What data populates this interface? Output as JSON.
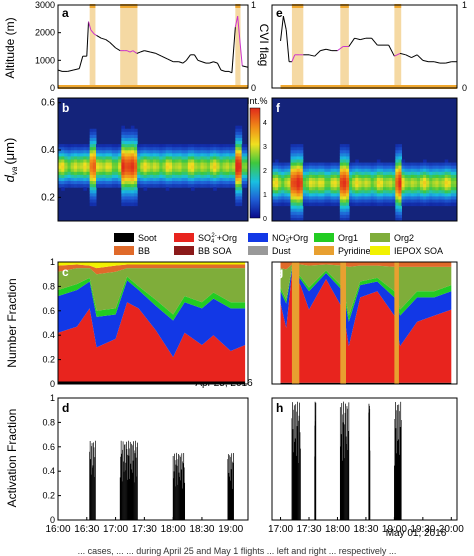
{
  "colors": {
    "cloud_shade": "#f5d9a3",
    "altitude_line": "#000000",
    "altitude_cloud_line": "#cc33cc",
    "cvi_flag": "#f0a830",
    "heat_background": "#14237a",
    "axis": "#000000"
  },
  "legend_items": [
    {
      "label": "Soot",
      "color": "#000000"
    },
    {
      "label": "SO42-+Org",
      "color": "#e8241e"
    },
    {
      "label": "NO3-+Org",
      "color": "#1238e6"
    },
    {
      "label": "Org1",
      "color": "#22cc22"
    },
    {
      "label": "Org2",
      "color": "#7fad3a"
    },
    {
      "label": "BB",
      "color": "#e06a2a"
    },
    {
      "label": "BB SOA",
      "color": "#8b1a1a"
    },
    {
      "label": "Dust",
      "color": "#999999"
    },
    {
      "label": "Pyridine",
      "color": "#e8a030"
    },
    {
      "label": "IEPOX SOA",
      "color": "#f2f200"
    }
  ],
  "legend_display": {
    "soot": "Soot",
    "so4_base": "SO",
    "so4_sub": "4",
    "so4_sup": "2-",
    "so4_rest": "+Org",
    "no3_base": "NO",
    "no3_sub": "3",
    "no3_sup": "-",
    "no3_rest": "+Org",
    "org1": "Org1",
    "org2": "Org2",
    "bb": "BB",
    "bb_soa": "BB SOA",
    "dust": "Dust",
    "pyridine": "Pyridine",
    "iepox": "IEPOX SOA"
  },
  "panel_letters": [
    "a",
    "b",
    "c",
    "d",
    "e",
    "f",
    "g",
    "h"
  ],
  "colorbar": {
    "title": "Int.%",
    "ticks": [
      "0",
      "1",
      "2",
      "3",
      "4"
    ],
    "stops": [
      "#0a0a8a",
      "#1f5fd6",
      "#19c0e0",
      "#3ec83e",
      "#f0e020",
      "#f08a18",
      "#e02a1a"
    ]
  },
  "axes": {
    "altitude_ylabel": "Altitude (m)",
    "cvi_ylabel": "CVI flag",
    "dva_ylabel_main": "d",
    "dva_ylabel_sub": "va",
    "dva_ylabel_unit": "(μm)",
    "number_fraction_ylabel": "Number Fraction",
    "activation_fraction_ylabel": "Activation Fraction",
    "altitude_ticks": [
      "0",
      "1000",
      "2000",
      "3000"
    ],
    "cvi_ticks": [
      "0",
      "1"
    ],
    "dva_ticks": [
      "0.2",
      "0.4",
      "0.6"
    ],
    "fraction_ticks": [
      "0",
      "0.2",
      "0.4",
      "0.6",
      "0.8",
      "1"
    ],
    "left_time_ticks": [
      "16:00",
      "16:30",
      "17:00",
      "17:30",
      "18:00",
      "18:30",
      "19:00"
    ],
    "right_time_ticks": [
      "17:00",
      "17:30",
      "18:00",
      "18:30",
      "19:00",
      "19:30",
      "20:00"
    ],
    "left_date": "Apr 25, 2016",
    "right_date": "May 01, 2016"
  },
  "caption": "... cases, ... ... during April 25 and May 1 flights ... left and right ... respectively ...",
  "chart_data": [
    {
      "panel": "a",
      "type": "line",
      "x_range_hours": [
        16.0,
        19.3
      ],
      "ylabel": "Altitude (m)",
      "y2label": "CVI flag",
      "ylim": [
        0,
        3000
      ],
      "y2lim": [
        0,
        1
      ],
      "altitude_x_hours": [
        16.0,
        16.07,
        16.17,
        16.27,
        16.37,
        16.43,
        16.5,
        16.53,
        16.57,
        16.63,
        16.67,
        16.75,
        16.83,
        16.9,
        16.95,
        17.0,
        17.08,
        17.15,
        17.2,
        17.25,
        17.3,
        17.37,
        17.43,
        17.5,
        17.6,
        17.7,
        17.8,
        17.9,
        18.0,
        18.1,
        18.17,
        18.23,
        18.3,
        18.37,
        18.43,
        18.5,
        18.57,
        18.63,
        18.7,
        18.77,
        18.83,
        18.9,
        18.97,
        19.02,
        19.08,
        19.12,
        19.2,
        19.3
      ],
      "altitude_y_m": [
        650,
        600,
        600,
        650,
        700,
        1150,
        1150,
        2400,
        2100,
        1950,
        1900,
        1800,
        1750,
        1650,
        1550,
        1450,
        1350,
        1350,
        1350,
        1300,
        1350,
        1250,
        1300,
        1350,
        1300,
        1250,
        1150,
        1050,
        950,
        950,
        900,
        1000,
        1200,
        1200,
        1000,
        950,
        900,
        900,
        950,
        900,
        650,
        600,
        600,
        550,
        2200,
        2600,
        800,
        750
      ],
      "cloud_periods_hours": [
        [
          16.55,
          16.65
        ],
        [
          17.08,
          17.38
        ],
        [
          19.08,
          19.17
        ]
      ],
      "cvi_flag": [
        {
          "start": 16.0,
          "end": 19.3,
          "value": 0
        },
        {
          "start": 16.55,
          "end": 16.65,
          "value": 1
        },
        {
          "start": 17.08,
          "end": 17.38,
          "value": 1
        },
        {
          "start": 19.08,
          "end": 19.17,
          "value": 1
        }
      ]
    },
    {
      "panel": "b",
      "type": "heatmap",
      "ylabel": "d_va (μm)",
      "ylim": [
        0.1,
        0.62
      ],
      "colorbar_label": "Int.%",
      "colorbar_range": [
        0,
        4.5
      ],
      "mode_diameter_um": 0.33,
      "in_cloud_enhancement_periods_hours": [
        [
          16.55,
          16.65
        ],
        [
          17.08,
          17.38
        ],
        [
          19.08,
          19.17
        ]
      ]
    },
    {
      "panel": "c",
      "type": "area",
      "ylabel": "Number Fraction",
      "ylim": [
        0,
        1
      ],
      "x_hours": [
        16.0,
        16.33,
        16.55,
        16.67,
        17.0,
        17.2,
        17.4,
        17.7,
        18.0,
        18.2,
        18.5,
        18.7,
        19.0,
        19.25
      ],
      "series": [
        {
          "name": "Soot",
          "values": [
            0.02,
            0.02,
            0.02,
            0.02,
            0.02,
            0.02,
            0.02,
            0.02,
            0.02,
            0.02,
            0.02,
            0.02,
            0.02,
            0.02
          ]
        },
        {
          "name": "SO42-+Org",
          "values": [
            0.4,
            0.45,
            0.6,
            0.28,
            0.35,
            0.65,
            0.6,
            0.42,
            0.2,
            0.4,
            0.3,
            0.38,
            0.25,
            0.3
          ]
        },
        {
          "name": "NO3-+Org",
          "values": [
            0.3,
            0.3,
            0.22,
            0.25,
            0.2,
            0.18,
            0.15,
            0.2,
            0.3,
            0.25,
            0.3,
            0.3,
            0.35,
            0.3
          ]
        },
        {
          "name": "Org1",
          "values": [
            0.05,
            0.05,
            0.03,
            0.05,
            0.05,
            0.03,
            0.03,
            0.05,
            0.05,
            0.05,
            0.05,
            0.05,
            0.05,
            0.05
          ]
        },
        {
          "name": "Org2",
          "values": [
            0.15,
            0.13,
            0.08,
            0.3,
            0.3,
            0.07,
            0.15,
            0.26,
            0.38,
            0.23,
            0.28,
            0.2,
            0.28,
            0.28
          ]
        },
        {
          "name": "BB",
          "values": [
            0.05,
            0.03,
            0.02,
            0.05,
            0.05,
            0.03,
            0.03,
            0.03,
            0.03,
            0.03,
            0.03,
            0.03,
            0.03,
            0.03
          ]
        },
        {
          "name": "IEPOX SOA",
          "values": [
            0.03,
            0.02,
            0.03,
            0.05,
            0.03,
            0.02,
            0.02,
            0.02,
            0.02,
            0.02,
            0.02,
            0.02,
            0.02,
            0.02
          ]
        }
      ]
    },
    {
      "panel": "d",
      "type": "bar",
      "ylabel": "Activation Fraction",
      "ylim": [
        0,
        1
      ],
      "x_range_hours": [
        16.0,
        19.3
      ],
      "activation_spikes": [
        {
          "start": 16.55,
          "end": 16.65,
          "max": 0.65
        },
        {
          "start": 17.08,
          "end": 17.38,
          "max": 0.65
        },
        {
          "start": 18.0,
          "end": 18.2,
          "max": 0.55
        },
        {
          "start": 18.95,
          "end": 19.05,
          "max": 0.55
        }
      ]
    },
    {
      "panel": "e",
      "type": "line",
      "x_range_hours": [
        17.0,
        20.1
      ],
      "ylim": [
        0,
        3000
      ],
      "y2lim": [
        0,
        1
      ],
      "altitude_x_hours": [
        17.0,
        17.05,
        17.1,
        17.15,
        17.2,
        17.25,
        17.33,
        17.4,
        17.5,
        17.6,
        17.7,
        17.8,
        17.9,
        18.0,
        18.1,
        18.2,
        18.3,
        18.4,
        18.5,
        18.6,
        18.7,
        18.8,
        18.9,
        19.0,
        19.1,
        19.2,
        19.3,
        19.4,
        19.5,
        19.6,
        19.7,
        19.8,
        19.9,
        20.0,
        20.1
      ],
      "altitude_y_m": [
        1700,
        2600,
        2100,
        950,
        950,
        1200,
        1200,
        1200,
        1200,
        1150,
        1350,
        1400,
        1350,
        1350,
        1500,
        1500,
        1800,
        1750,
        1800,
        1800,
        1550,
        1550,
        1550,
        1150,
        1250,
        1200,
        1100,
        1200,
        1000,
        950,
        950,
        900,
        900,
        950,
        950
      ],
      "cloud_periods_hours": [
        [
          17.2,
          17.4
        ],
        [
          18.05,
          18.2
        ],
        [
          19.0,
          19.12
        ]
      ],
      "cvi_flag": [
        {
          "start": 17.0,
          "end": 20.1,
          "value": 0
        },
        {
          "start": 17.2,
          "end": 17.4,
          "value": 1
        },
        {
          "start": 18.05,
          "end": 18.2,
          "value": 1
        },
        {
          "start": 19.0,
          "end": 19.12,
          "value": 1
        }
      ]
    },
    {
      "panel": "f",
      "type": "heatmap",
      "ylim": [
        0.1,
        0.62
      ],
      "mode_diameter_um": 0.26,
      "in_cloud_enhancement_periods_hours": [
        [
          17.2,
          17.4
        ],
        [
          18.05,
          18.2
        ],
        [
          19.0,
          19.12
        ]
      ]
    },
    {
      "panel": "g",
      "type": "area",
      "ylim": [
        0,
        1
      ],
      "x_hours": [
        17.0,
        17.1,
        17.2,
        17.35,
        17.5,
        17.8,
        18.1,
        18.2,
        18.4,
        18.7,
        19.0,
        19.1,
        19.4,
        19.7,
        20.0
      ],
      "series": [
        {
          "name": "Soot",
          "values": [
            0.01,
            0.01,
            0.01,
            0.01,
            0.01,
            0.01,
            0.01,
            0.01,
            0.01,
            0.01,
            0.01,
            0.01,
            0.01,
            0.01,
            0.01
          ]
        },
        {
          "name": "SO42-+Org",
          "values": [
            0.65,
            0.45,
            0.9,
            0.8,
            0.6,
            0.85,
            0.6,
            0.3,
            0.7,
            0.75,
            0.55,
            0.3,
            0.5,
            0.55,
            0.6
          ]
        },
        {
          "name": "NO3-+Org",
          "values": [
            0.1,
            0.2,
            0.03,
            0.05,
            0.15,
            0.05,
            0.15,
            0.2,
            0.1,
            0.08,
            0.15,
            0.25,
            0.2,
            0.15,
            0.15
          ]
        },
        {
          "name": "Org1",
          "values": [
            0.03,
            0.03,
            0.02,
            0.02,
            0.03,
            0.02,
            0.03,
            0.05,
            0.03,
            0.03,
            0.05,
            0.05,
            0.05,
            0.05,
            0.05
          ]
        },
        {
          "name": "Org2",
          "values": [
            0.16,
            0.25,
            0.02,
            0.1,
            0.18,
            0.05,
            0.18,
            0.4,
            0.13,
            0.1,
            0.2,
            0.35,
            0.2,
            0.2,
            0.15
          ]
        },
        {
          "name": "BB",
          "values": [
            0.05,
            0.06,
            0.02,
            0.02,
            0.03,
            0.02,
            0.03,
            0.04,
            0.03,
            0.03,
            0.04,
            0.04,
            0.04,
            0.04,
            0.04
          ]
        }
      ],
      "pyridine_bands_hours": [
        [
          17.2,
          17.33
        ],
        [
          18.05,
          18.15
        ],
        [
          19.0,
          19.08
        ]
      ]
    },
    {
      "panel": "h",
      "type": "bar",
      "ylim": [
        0,
        1
      ],
      "x_range_hours": [
        17.0,
        20.1
      ],
      "activation_spikes": [
        {
          "start": 17.2,
          "end": 17.35,
          "max": 0.97
        },
        {
          "start": 17.6,
          "end": 17.62,
          "max": 0.97
        },
        {
          "start": 18.05,
          "end": 18.2,
          "max": 0.97
        },
        {
          "start": 18.55,
          "end": 18.57,
          "max": 0.97
        },
        {
          "start": 19.0,
          "end": 19.12,
          "max": 0.97
        }
      ]
    }
  ]
}
